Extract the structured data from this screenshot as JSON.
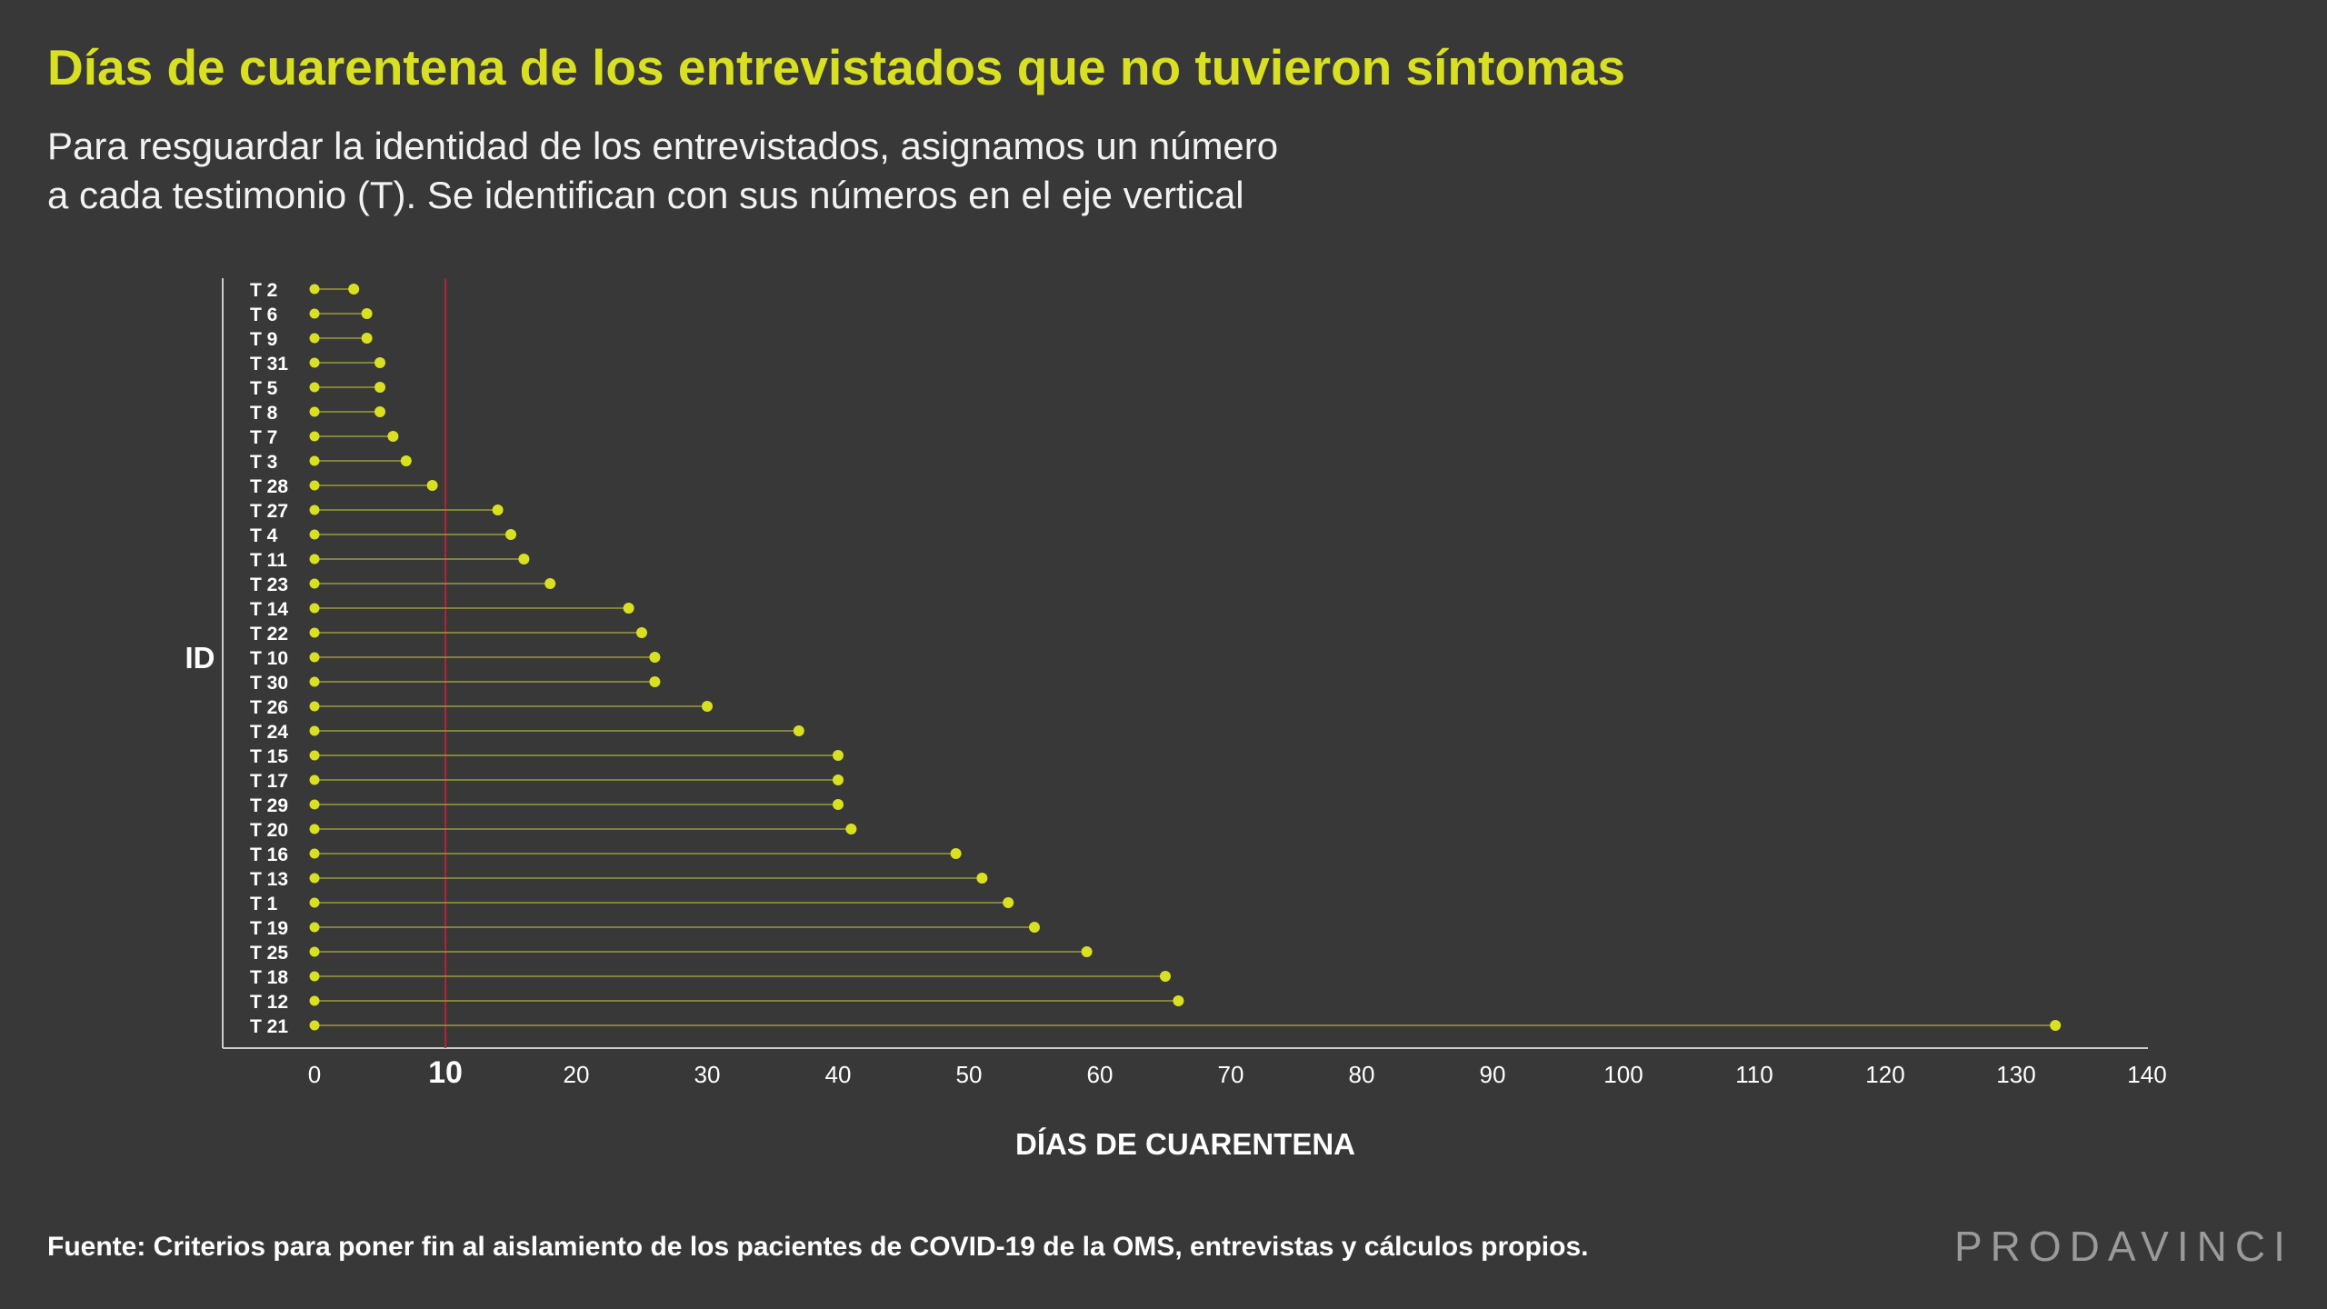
{
  "header": {
    "title": "Días de cuarentena de los entrevistados que no tuvieron síntomas",
    "subtitle_line1": "Para resguardar la identidad de los entrevistados, asignamos un número",
    "subtitle_line2": "a cada testimonio (T). Se identifican con sus números en el eje vertical"
  },
  "footer": {
    "source": "Fuente: Criterios para poner fin al aislamiento de los pacientes de COVID-19 de la OMS, entrevistas y cálculos propios.",
    "brand": "PRODAVINCI"
  },
  "colors": {
    "background": "#383838",
    "title": "#d9e021",
    "marker": "#d9e021",
    "stem": "#9a9a3a",
    "reference_line": "#b0232f",
    "axis": "#cccccc"
  },
  "chart_data": {
    "type": "dumbbell",
    "xlabel": "DÍAS DE CUARENTENA",
    "ylabel": "ID",
    "xlim": [
      0,
      140
    ],
    "xticks": [
      0,
      10,
      20,
      30,
      40,
      50,
      60,
      70,
      80,
      90,
      100,
      110,
      120,
      130,
      140
    ],
    "reference_line": 10,
    "grid": false,
    "categories": [
      "T 2",
      "T 6",
      "T 9",
      "T 31",
      "T 5",
      "T 8",
      "T 7",
      "T 3",
      "T 28",
      "T 27",
      "T 4",
      "T 11",
      "T 23",
      "T 14",
      "T 22",
      "T 10",
      "T 30",
      "T 26",
      "T 24",
      "T 15",
      "T 17",
      "T 29",
      "T 20",
      "T 16",
      "T 13",
      "T 1",
      "T 19",
      "T 25",
      "T 18",
      "T 12",
      "T 21"
    ],
    "start": [
      0,
      0,
      0,
      0,
      0,
      0,
      0,
      0,
      0,
      0,
      0,
      0,
      0,
      0,
      0,
      0,
      0,
      0,
      0,
      0,
      0,
      0,
      0,
      0,
      0,
      0,
      0,
      0,
      0,
      0,
      0
    ],
    "values": [
      3,
      4,
      4,
      5,
      5,
      5,
      6,
      7,
      9,
      14,
      15,
      16,
      18,
      24,
      25,
      26,
      26,
      30,
      37,
      40,
      40,
      40,
      41,
      49,
      51,
      53,
      55,
      59,
      65,
      66,
      133
    ]
  }
}
